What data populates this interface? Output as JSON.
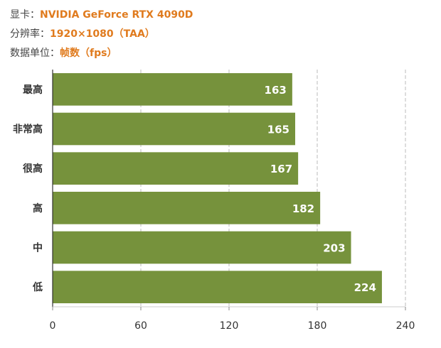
{
  "header": {
    "gpu": {
      "label": "显卡：",
      "value": "NVIDIA GeForce RTX 4090D"
    },
    "resolution": {
      "label": "分辨率：",
      "value": "1920×1080（TAA）"
    },
    "unit": {
      "label": "数据单位：",
      "value": "帧数（fps）"
    }
  },
  "colors": {
    "bar": "#76923c",
    "accent": "#e07b1e",
    "grid": "#bbbbbb",
    "axis": "#333333"
  },
  "chart_data": {
    "type": "bar",
    "orientation": "horizontal",
    "categories": [
      "最高",
      "非常高",
      "很高",
      "高",
      "中",
      "低"
    ],
    "values": [
      163,
      165,
      167,
      182,
      203,
      224
    ],
    "xlim": [
      0,
      240
    ],
    "xticks": [
      0,
      60,
      120,
      180,
      240
    ],
    "grid": "vertical-dashed",
    "data_labels": "inside-end"
  }
}
